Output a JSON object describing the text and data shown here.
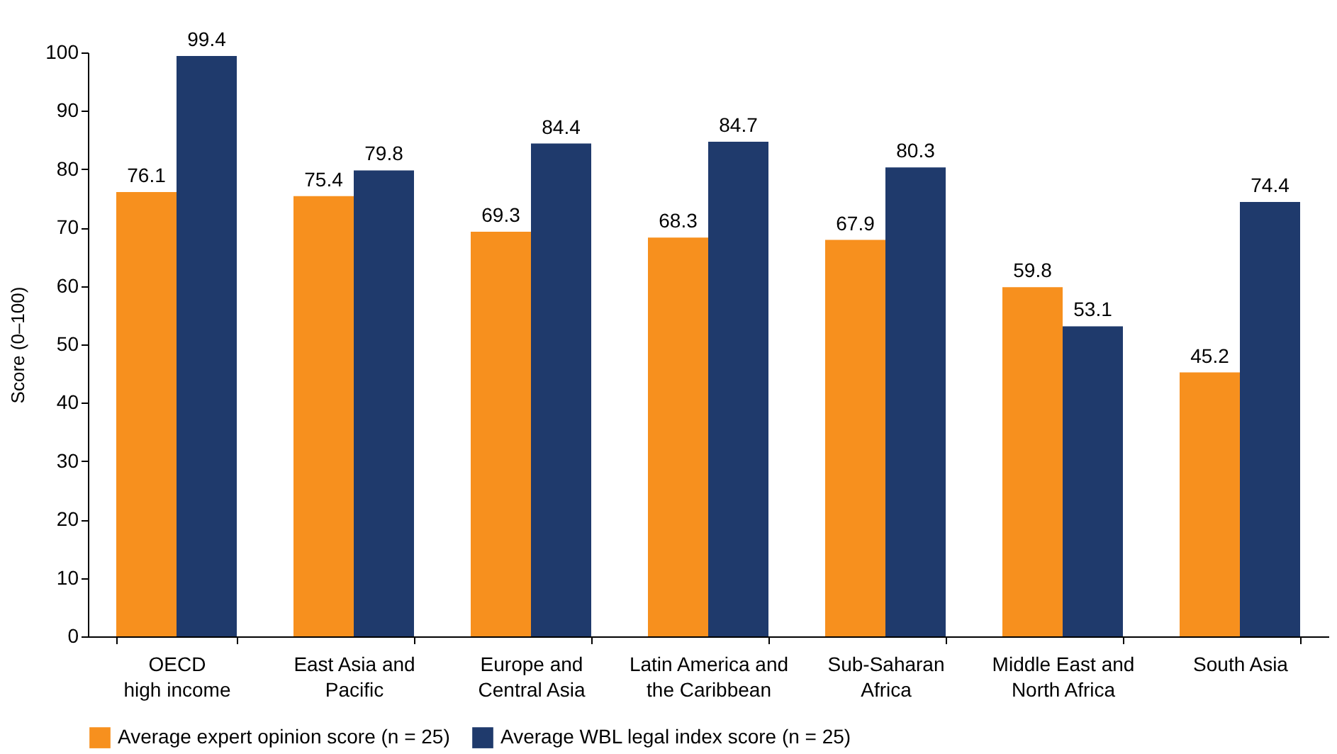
{
  "chart_data": {
    "type": "bar",
    "ylabel": "Score (0–100)",
    "categories": [
      "OECD\nhigh income",
      "East Asia and\nPacific",
      "Europe and\nCentral Asia",
      "Latin America and\nthe Caribbean",
      "Sub-Saharan\nAfrica",
      "Middle East and\nNorth Africa",
      "South Asia"
    ],
    "series": [
      {
        "name": "Average expert opinion score (n = 25)",
        "color": "#f7901e",
        "values": [
          76.1,
          75.4,
          69.3,
          68.3,
          67.9,
          59.8,
          45.2
        ]
      },
      {
        "name": "Average WBL legal index score (n = 25)",
        "color": "#1f3a6c",
        "values": [
          99.4,
          79.8,
          84.4,
          84.7,
          80.3,
          53.1,
          74.4
        ]
      }
    ],
    "ylim": [
      0,
      100
    ],
    "yticks": [
      0,
      10,
      20,
      30,
      40,
      50,
      60,
      70,
      80,
      90,
      100
    ],
    "grid": false,
    "legend": "bottom",
    "data_labels": true
  }
}
